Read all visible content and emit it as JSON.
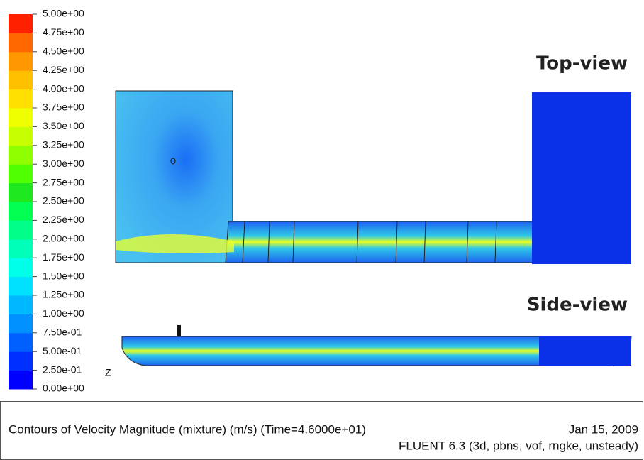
{
  "colorbar": {
    "ticks": [
      {
        "value": 5.0,
        "label": "5.00e+00"
      },
      {
        "value": 4.75,
        "label": "4.75e+00"
      },
      {
        "value": 4.5,
        "label": "4.50e+00"
      },
      {
        "value": 4.25,
        "label": "4.25e+00"
      },
      {
        "value": 4.0,
        "label": "4.00e+00"
      },
      {
        "value": 3.75,
        "label": "3.75e+00"
      },
      {
        "value": 3.5,
        "label": "3.50e+00"
      },
      {
        "value": 3.25,
        "label": "3.25e+00"
      },
      {
        "value": 3.0,
        "label": "3.00e+00"
      },
      {
        "value": 2.75,
        "label": "2.75e+00"
      },
      {
        "value": 2.5,
        "label": "2.50e+00"
      },
      {
        "value": 2.25,
        "label": "2.25e+00"
      },
      {
        "value": 2.0,
        "label": "2.00e+00"
      },
      {
        "value": 1.75,
        "label": "1.75e+00"
      },
      {
        "value": 1.5,
        "label": "1.50e+00"
      },
      {
        "value": 1.25,
        "label": "1.25e+00"
      },
      {
        "value": 1.0,
        "label": "1.00e+00"
      },
      {
        "value": 0.75,
        "label": "7.50e-01"
      },
      {
        "value": 0.5,
        "label": "5.00e-01"
      },
      {
        "value": 0.25,
        "label": "2.50e-01"
      },
      {
        "value": 0.0,
        "label": "0.00e+00"
      }
    ],
    "colors": [
      "#0000ff",
      "#0030ff",
      "#0060ff",
      "#0090ff",
      "#00b8ff",
      "#00e0ff",
      "#00ffe8",
      "#00ffb8",
      "#00ff88",
      "#00ff50",
      "#20e820",
      "#50ff00",
      "#90ff00",
      "#c8ff00",
      "#f0ff00",
      "#ffe000",
      "#ffc000",
      "#ff9800",
      "#ff6800",
      "#ff2000"
    ]
  },
  "axis_label": "Z",
  "views": {
    "top": "Top-view",
    "side": "Side-view"
  },
  "footer": {
    "title": "Contours of Velocity Magnitude (mixture)  (m/s)  (Time=4.6000e+01)",
    "date": "Jan 15, 2009",
    "solver": "FLUENT 6.3 (3d, pbns, vof, rngke, unsteady)"
  }
}
